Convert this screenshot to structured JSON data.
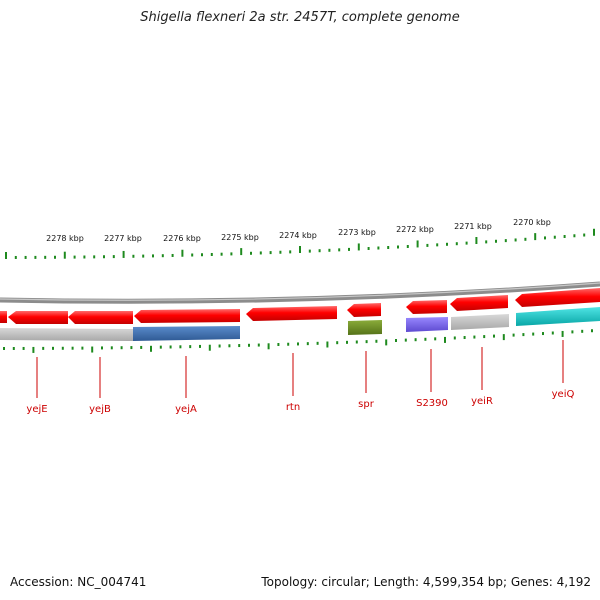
{
  "title": "Shigella flexneri 2a str. 2457T, complete genome",
  "footer": {
    "accession": "Accession: NC_004741",
    "summary": "Topology: circular; Length: 4,599,354 bp; Genes: 4,192"
  },
  "kbp_labels": [
    "2278 kbp",
    "2277 kbp",
    "2276 kbp",
    "2275 kbp",
    "2274 kbp",
    "2273 kbp",
    "2272 kbp",
    "2271 kbp",
    "2270 kbp"
  ],
  "gene_labels": [
    "yejE",
    "yejB",
    "yejA",
    "rtn",
    "spr",
    "S2390",
    "yeiR",
    "yeiQ"
  ],
  "colors": {
    "gene_red": "#ff0000",
    "backbone": "#8c8c8c",
    "tick_green": "#1e8a1e",
    "label_red": "#cc0000",
    "track_gray": "#bdbdbd",
    "track_blue": "#3f6fa8",
    "track_olive": "#6b8e23",
    "track_purple": "#7b68ee",
    "track_cyan": "#10c8c8"
  }
}
